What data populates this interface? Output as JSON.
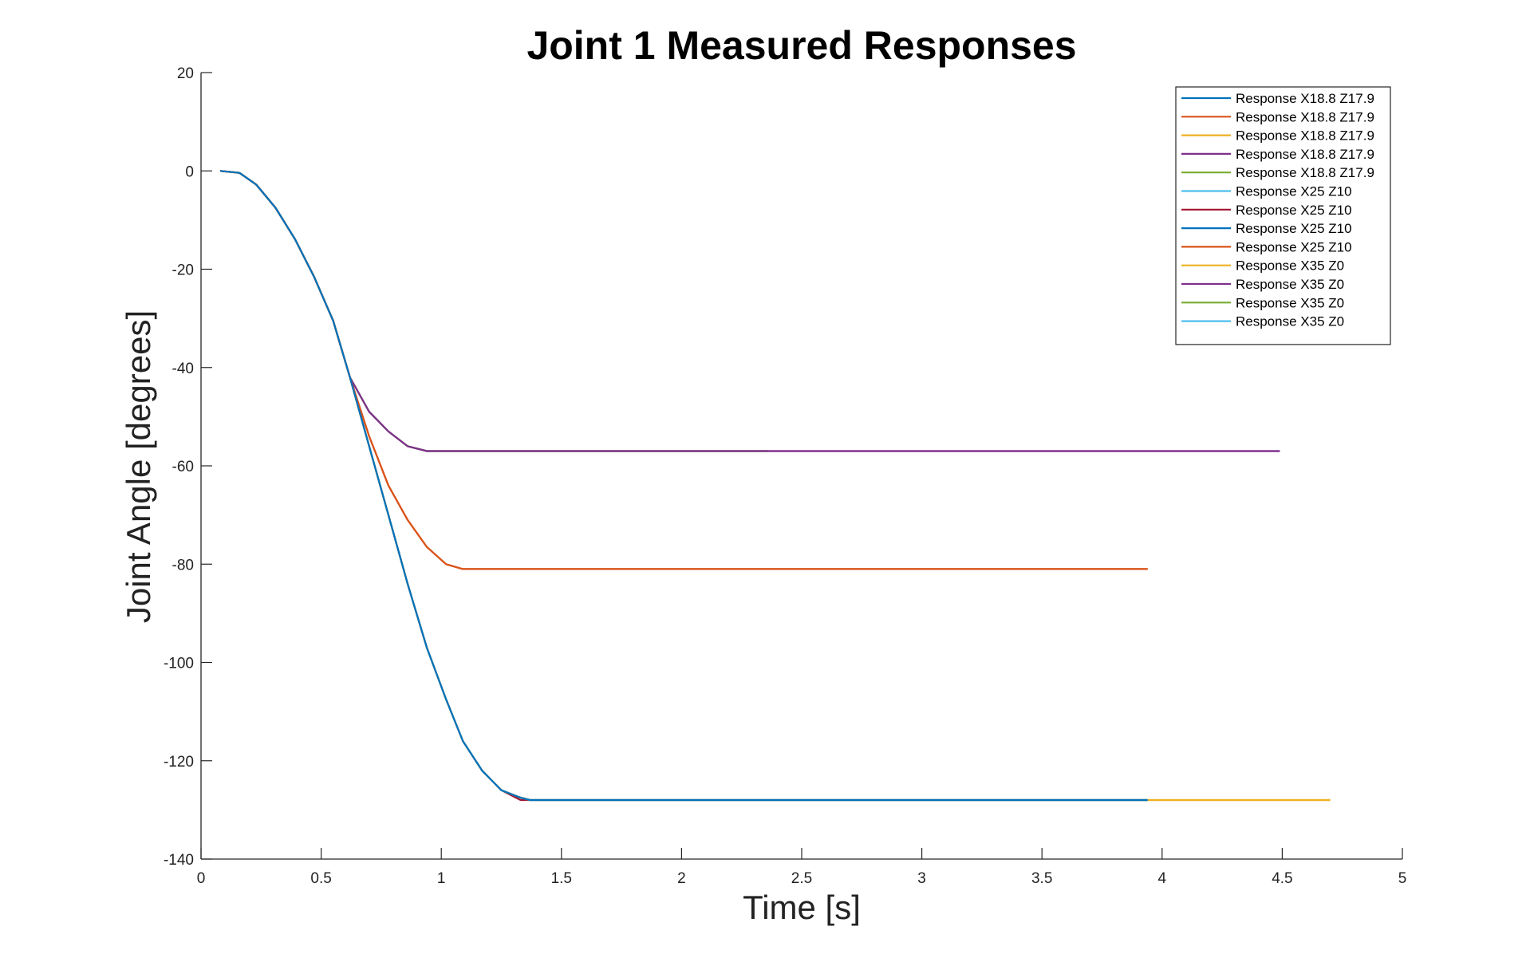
{
  "chart_data": {
    "type": "line",
    "title": "Joint 1 Measured Responses",
    "xlabel": "Time [s]",
    "ylabel": "Joint Angle [degrees]",
    "xlim": [
      0,
      5
    ],
    "ylim": [
      -140,
      20
    ],
    "xticks": [
      0,
      0.5,
      1,
      1.5,
      2,
      2.5,
      3,
      3.5,
      4,
      4.5,
      5
    ],
    "xtick_labels": [
      "0",
      "0.5",
      "1",
      "1.5",
      "2",
      "2.5",
      "3",
      "3.5",
      "4",
      "4.5",
      "5"
    ],
    "yticks": [
      20,
      0,
      -20,
      -40,
      -60,
      -80,
      -100,
      -120,
      -140
    ],
    "ytick_labels": [
      "20",
      "0",
      "-20",
      "-40",
      "-60",
      "-80",
      "-100",
      "-120",
      "-140"
    ],
    "grid": false,
    "legend_position": "top-right",
    "series": [
      {
        "name": "Response X18.8 Z17.9",
        "color": "#0072BD",
        "x": [
          0.08,
          0.16,
          0.23,
          0.31,
          0.39,
          0.47,
          0.55,
          0.62,
          0.7,
          0.78,
          0.86,
          0.94,
          1.02,
          1.09,
          1.17,
          1.25,
          1.33,
          1.37,
          1.5,
          3.94
        ],
        "y": [
          0,
          -0.4,
          -2.8,
          -7.5,
          -13.8,
          -21.5,
          -30.5,
          -42,
          -56,
          -70,
          -84,
          -97,
          -107.5,
          -116,
          -122,
          -126,
          -127.5,
          -128,
          -128,
          -128
        ]
      },
      {
        "name": "Response X18.8 Z17.9",
        "color": "#D95319",
        "x": [
          0.08,
          0.16,
          0.23,
          0.31,
          0.39,
          0.47,
          0.55,
          0.62,
          0.7,
          0.78,
          0.86,
          0.94,
          1.02,
          1.09,
          1.17,
          3.94
        ],
        "y": [
          0,
          -0.4,
          -2.8,
          -7.5,
          -13.8,
          -21.5,
          -30.5,
          -42,
          -54,
          -64,
          -71,
          -76.5,
          -80,
          -81,
          -81,
          -81
        ]
      },
      {
        "name": "Response X18.8 Z17.9",
        "color": "#EDB120",
        "x": [
          0.08,
          0.16,
          0.23,
          0.31,
          0.39,
          0.47,
          0.55,
          0.62,
          0.7,
          0.78,
          0.86,
          0.94,
          1.02,
          1.09,
          1.17,
          1.25,
          1.33,
          1.37,
          1.5,
          4.7
        ],
        "y": [
          0,
          -0.4,
          -2.8,
          -7.5,
          -13.8,
          -21.5,
          -30.5,
          -42,
          -56,
          -70,
          -84,
          -97,
          -107.5,
          -116,
          -122,
          -126,
          -127.5,
          -128,
          -128,
          -128
        ]
      },
      {
        "name": "Response X18.8 Z17.9",
        "color": "#7E2F8E",
        "x": [
          0.08,
          0.16,
          0.23,
          0.31,
          0.39,
          0.47,
          0.55,
          0.62,
          0.7,
          0.78,
          0.86,
          0.94,
          1.02,
          4.49
        ],
        "y": [
          0,
          -0.4,
          -2.8,
          -7.5,
          -13.8,
          -21.5,
          -30.5,
          -42,
          -49,
          -53,
          -56,
          -57,
          -57,
          -57
        ]
      },
      {
        "name": "Response X18.8 Z17.9",
        "color": "#77AC30",
        "x": [
          0.08,
          0.16,
          0.23,
          0.31,
          0.39,
          0.47,
          0.55,
          0.62,
          0.7,
          0.78,
          0.86,
          0.94,
          1.02,
          2.36
        ],
        "y": [
          0,
          -0.4,
          -2.8,
          -7.5,
          -13.8,
          -21.5,
          -30.5,
          -42,
          -49,
          -53,
          -56,
          -57,
          -57,
          -57
        ]
      },
      {
        "name": "Response X25 Z10",
        "color": "#4DBEEE",
        "x": [
          0.08,
          0.16,
          0.23,
          0.31,
          0.39,
          0.47,
          0.55,
          0.62,
          0.7,
          0.78,
          0.86,
          0.94,
          1.02,
          1.09,
          1.17,
          1.25,
          1.33,
          1.37,
          1.5,
          3.94
        ],
        "y": [
          0,
          -0.4,
          -2.8,
          -7.5,
          -13.8,
          -21.5,
          -30.5,
          -42,
          -56,
          -70,
          -84,
          -97,
          -107.5,
          -116,
          -122,
          -126,
          -127.5,
          -128,
          -128,
          -128
        ]
      },
      {
        "name": "Response X25 Z10",
        "color": "#A2142F",
        "x": [
          0.08,
          0.16,
          0.23,
          0.31,
          0.39,
          0.47,
          0.55,
          0.62,
          0.7,
          0.78,
          0.86,
          0.94,
          1.02,
          1.09,
          1.17,
          1.25,
          1.33,
          1.37
        ],
        "y": [
          0,
          -0.4,
          -2.8,
          -7.5,
          -13.8,
          -21.5,
          -30.5,
          -42,
          -56,
          -70,
          -84,
          -97,
          -107.5,
          -116,
          -122,
          -126,
          -128,
          -128
        ]
      },
      {
        "name": "Response X25 Z10",
        "color": "#0072BD",
        "x": [
          0.08,
          0.16,
          0.23,
          0.31,
          0.39,
          0.47,
          0.55,
          0.62,
          0.7,
          0.78,
          0.86,
          0.94,
          1.02,
          1.09,
          1.17,
          1.25,
          1.33,
          1.37,
          1.5,
          3.94
        ],
        "y": [
          0,
          -0.4,
          -2.8,
          -7.5,
          -13.8,
          -21.5,
          -30.5,
          -42,
          -56,
          -70,
          -84,
          -97,
          -107.5,
          -116,
          -122,
          -126,
          -127.5,
          -128,
          -128,
          -128
        ]
      },
      {
        "name": "Response X25 Z10",
        "color": "#D95319",
        "x": [
          0.08,
          0.16,
          0.23,
          0.31,
          0.39,
          0.47,
          0.55,
          0.62,
          0.7,
          0.78,
          0.86,
          0.94,
          1.02,
          1.09,
          1.17,
          3.94
        ],
        "y": [
          0,
          -0.4,
          -2.8,
          -7.5,
          -13.8,
          -21.5,
          -30.5,
          -42,
          -54,
          -64,
          -71,
          -76.5,
          -80,
          -81,
          -81,
          -81
        ]
      },
      {
        "name": "Response X35 Z0",
        "color": "#EDB120",
        "x": [
          0.08,
          0.16,
          0.23,
          0.31,
          0.39,
          0.47,
          0.55,
          0.62,
          0.7,
          0.78,
          0.86,
          0.94,
          1.02,
          1.09,
          1.17,
          1.25,
          1.33,
          1.37,
          1.5,
          4.7
        ],
        "y": [
          0,
          -0.4,
          -2.8,
          -7.5,
          -13.8,
          -21.5,
          -30.5,
          -42,
          -56,
          -70,
          -84,
          -97,
          -107.5,
          -116,
          -122,
          -126,
          -127.5,
          -128,
          -128,
          -128
        ]
      },
      {
        "name": "Response X35 Z0",
        "color": "#7E2F8E",
        "x": [
          0.08,
          0.16,
          0.23,
          0.31,
          0.39,
          0.47,
          0.55,
          0.62,
          0.7,
          0.78,
          0.86,
          0.94,
          1.02,
          4.49
        ],
        "y": [
          0,
          -0.4,
          -2.8,
          -7.5,
          -13.8,
          -21.5,
          -30.5,
          -42,
          -49,
          -53,
          -56,
          -57,
          -57,
          -57
        ]
      },
      {
        "name": "Response X35 Z0",
        "color": "#77AC30",
        "x": [
          0.08,
          0.16,
          0.23,
          0.31,
          0.39,
          0.47,
          0.55,
          0.62,
          0.7,
          0.78,
          0.86,
          0.94,
          1.02,
          2.36
        ],
        "y": [
          0,
          -0.4,
          -2.8,
          -7.5,
          -13.8,
          -21.5,
          -30.5,
          -42,
          -49,
          -53,
          -56,
          -57,
          -57,
          -57
        ]
      },
      {
        "name": "Response X35 Z0",
        "color": "#4DBEEE",
        "x": [
          0.08,
          0.16,
          0.23,
          0.31,
          0.39,
          0.47,
          0.55,
          0.62,
          0.7,
          0.78,
          0.86,
          0.94,
          1.02,
          1.09,
          1.17,
          1.25,
          1.33,
          1.37,
          1.5,
          3.94
        ],
        "y": [
          0,
          -0.4,
          -2.8,
          -7.5,
          -13.8,
          -21.5,
          -30.5,
          -42,
          -56,
          -70,
          -84,
          -97,
          -107.5,
          -116,
          -122,
          -126,
          -127.5,
          -128,
          -128,
          -128
        ]
      }
    ]
  }
}
